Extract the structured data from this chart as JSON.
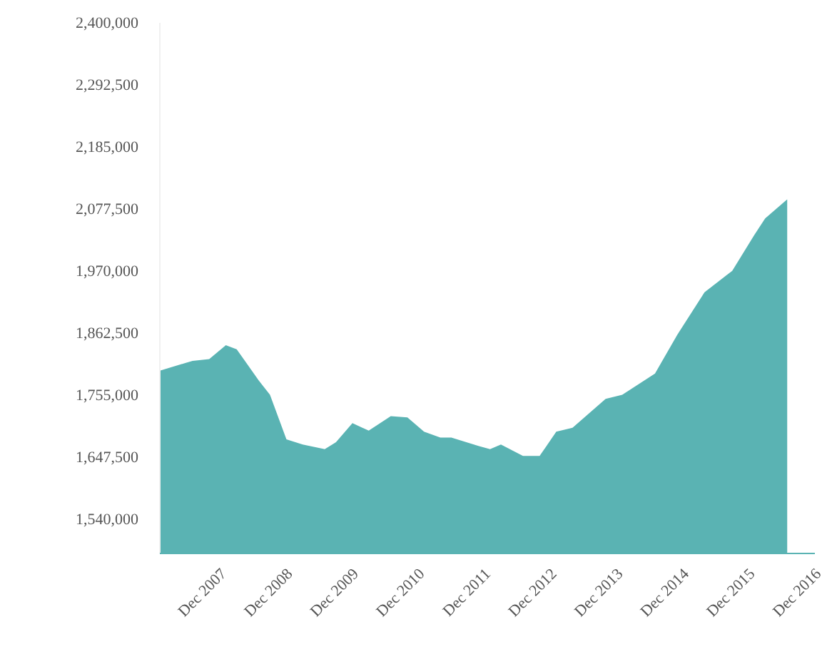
{
  "chart_data": {
    "type": "area",
    "color": "#5ab3b3",
    "x": [
      "2007-01",
      "2007-07",
      "2007-10",
      "2008-01",
      "2008-03",
      "2008-07",
      "2008-09",
      "2008-12",
      "2009-03",
      "2009-07",
      "2009-09",
      "2009-12",
      "2010-03",
      "2010-07",
      "2010-10",
      "2011-01",
      "2011-04",
      "2011-06",
      "2011-11",
      "2012-01",
      "2012-03",
      "2012-07",
      "2012-10",
      "2013-01",
      "2013-04",
      "2013-10",
      "2014-01",
      "2014-07",
      "2014-11",
      "2015-04",
      "2015-09",
      "2016-01",
      "2016-03",
      "2016-07"
    ],
    "values": [
      1797000,
      1814000,
      1817000,
      1841000,
      1834000,
      1780000,
      1755000,
      1678000,
      1669000,
      1661000,
      1673000,
      1706000,
      1693000,
      1718000,
      1716000,
      1691000,
      1681000,
      1681000,
      1666000,
      1661000,
      1669000,
      1649000,
      1649000,
      1691000,
      1698000,
      1748000,
      1755000,
      1792000,
      1859000,
      1933000,
      1970000,
      2032000,
      2061000,
      2094000
    ],
    "xlim": [
      "2007-01",
      "2016-12"
    ],
    "xticks": [
      {
        "value": "2007-12",
        "label": "Dec 2007"
      },
      {
        "value": "2008-12",
        "label": "Dec 2008"
      },
      {
        "value": "2009-12",
        "label": "Dec 2009"
      },
      {
        "value": "2010-12",
        "label": "Dec 2010"
      },
      {
        "value": "2011-12",
        "label": "Dec 2011"
      },
      {
        "value": "2012-12",
        "label": "Dec 2012"
      },
      {
        "value": "2013-12",
        "label": "Dec 2013"
      },
      {
        "value": "2014-12",
        "label": "Dec 2014"
      },
      {
        "value": "2015-12",
        "label": "Dec 2015"
      },
      {
        "value": "2016-12",
        "label": "Dec 2016"
      }
    ],
    "ylim": [
      1480000,
      2400000
    ],
    "yticks": [
      {
        "value": 1540000,
        "label": "1,540,000"
      },
      {
        "value": 1647500,
        "label": "1,647,500"
      },
      {
        "value": 1755000,
        "label": "1,755,000"
      },
      {
        "value": 1862500,
        "label": "1,862,500"
      },
      {
        "value": 1970000,
        "label": "1,970,000"
      },
      {
        "value": 2077500,
        "label": "2,077,500"
      },
      {
        "value": 2185000,
        "label": "2,185,000"
      },
      {
        "value": 2292500,
        "label": "2,292,500"
      },
      {
        "value": 2400000,
        "label": "2,400,000"
      }
    ],
    "grid": false
  }
}
